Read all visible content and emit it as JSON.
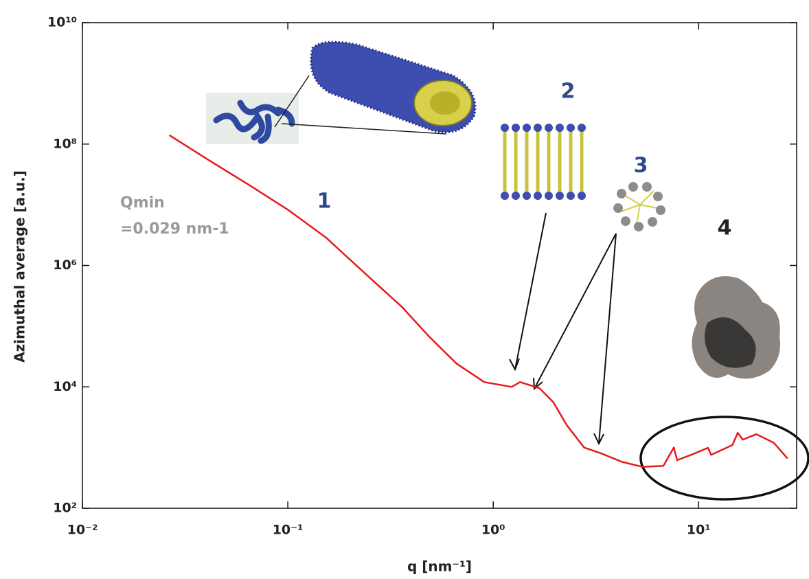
{
  "chart_data": {
    "type": "line",
    "x_label": "q [nm⁻¹]",
    "y_label": "Azimuthal average [a.u.]",
    "annotations": [
      "1",
      "2",
      "3",
      "4",
      "Qmin",
      "=0.029 nm-1"
    ],
    "x": [
      0.0265,
      0.041,
      0.065,
      0.1,
      0.153,
      0.243,
      0.358,
      0.488,
      0.664,
      0.905,
      1.23,
      1.35,
      1.68,
      1.96,
      2.29,
      2.77,
      3.36,
      4.24,
      5.35,
      6.74,
      7.57,
      7.86,
      9.2,
      11.1,
      11.5,
      14.6,
      15.5,
      16.4,
      19.1,
      23.2,
      27.1
    ],
    "values": [
      140000000,
      55000000,
      21000000,
      8300000,
      2900000,
      690000,
      210000,
      67000,
      24000,
      12000,
      10000,
      12000,
      9500,
      5600,
      2300,
      1000,
      800,
      580,
      480,
      500,
      1000,
      620,
      760,
      990,
      760,
      1100,
      1750,
      1350,
      1660,
      1200,
      660
    ],
    "color": "#e8191e",
    "x_log": true,
    "y_log": true,
    "xlim": [
      0.01,
      30
    ],
    "ylim": [
      100,
      10000000000
    ],
    "xticks": [
      {
        "value": 0.01,
        "label": "10⁻²"
      },
      {
        "value": 0.1,
        "label": "10⁻¹"
      },
      {
        "value": 1,
        "label": "10⁰"
      },
      {
        "value": 10,
        "label": "10¹"
      }
    ],
    "yticks": [
      {
        "value": 100,
        "label": "10²"
      },
      {
        "value": 10000,
        "label": "10⁴"
      },
      {
        "value": 1000000,
        "label": "10⁶"
      },
      {
        "value": 100000000,
        "label": "10⁸"
      },
      {
        "value": 10000000000,
        "label": "10¹⁰"
      }
    ]
  }
}
